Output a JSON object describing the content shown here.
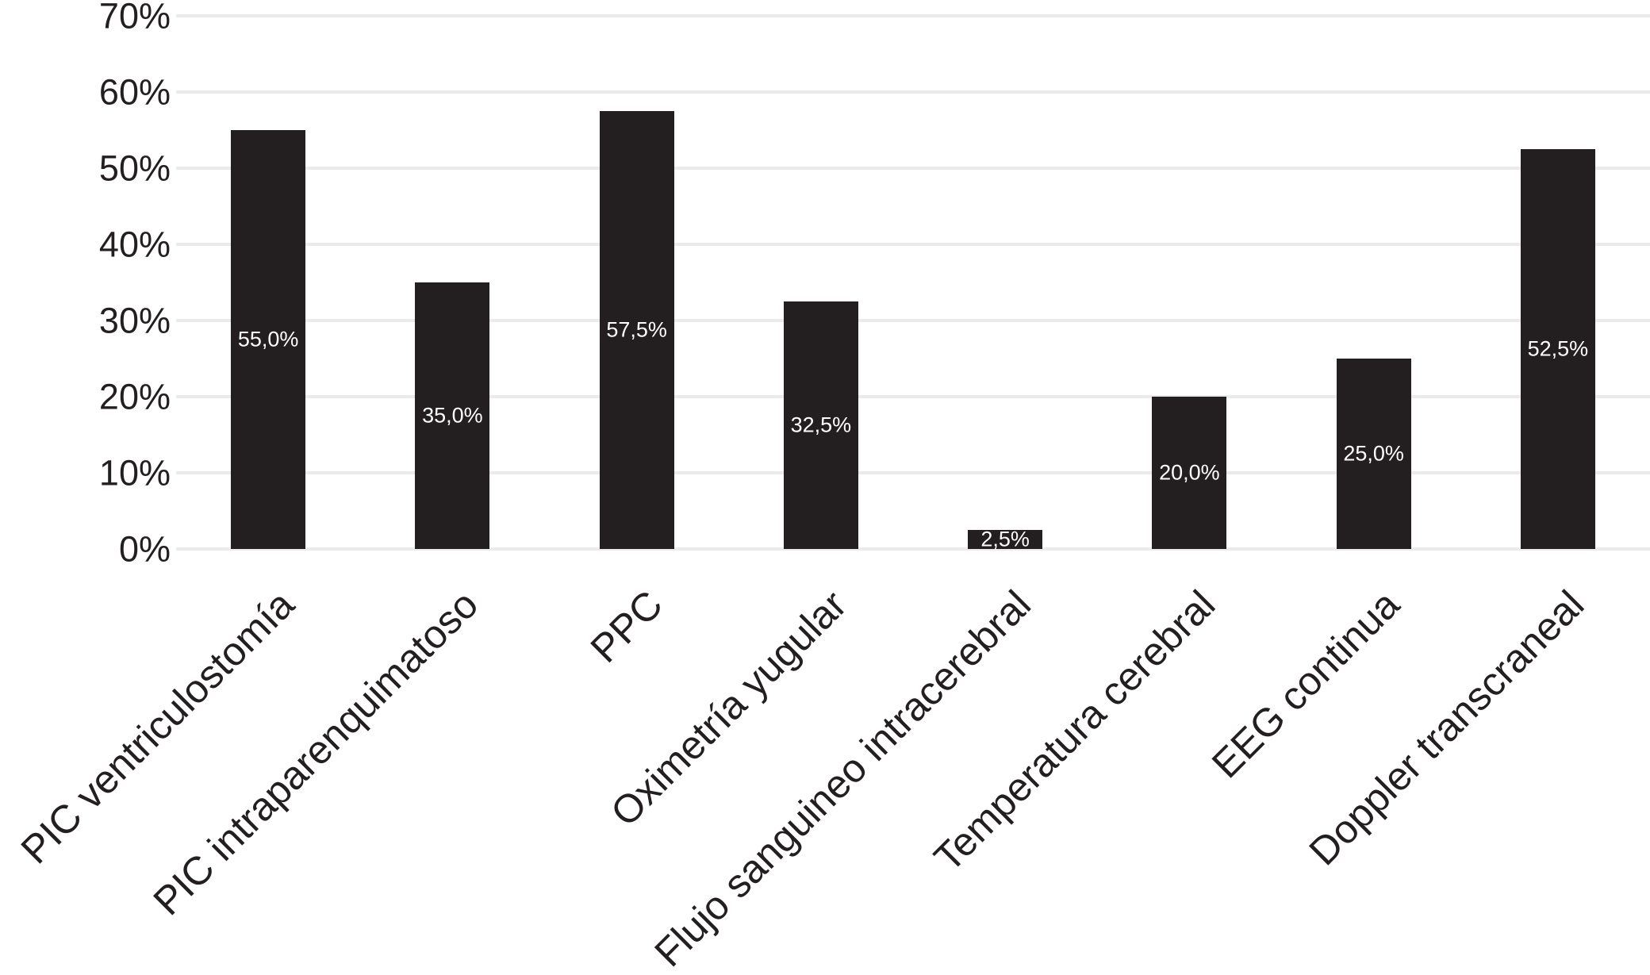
{
  "chart_data": {
    "type": "bar",
    "title": "",
    "xlabel": "",
    "ylabel": "",
    "categories": [
      "PIC ventriculostomía",
      "PIC intraparenquimatoso",
      "PPC",
      "Oximetría yugular",
      "Flujo sanguineo intracerebral",
      "Temperatura cerebral",
      "EEG continua",
      "Doppler transcraneal"
    ],
    "values": [
      55.0,
      35.0,
      57.5,
      32.5,
      2.5,
      20.0,
      25.0,
      52.5
    ],
    "bar_labels": [
      "55,0%",
      "35,0%",
      "57,5%",
      "32,5%",
      "2,5%",
      "20,0%",
      "25,0%",
      "52,5%"
    ],
    "y_ticks": [
      "0%",
      "10%",
      "20%",
      "30%",
      "40%",
      "50%",
      "60%",
      "70%"
    ],
    "ylim": [
      0,
      70
    ],
    "y_tick_step": 10,
    "grid": "horizontal",
    "legend": "none",
    "decimal_separator": ",",
    "colors": {
      "bar": "#231f20",
      "bar_label_text": "#ffffff",
      "gridline": "#ebebeb",
      "axis_text": "#231f20",
      "background": "#ffffff"
    }
  }
}
